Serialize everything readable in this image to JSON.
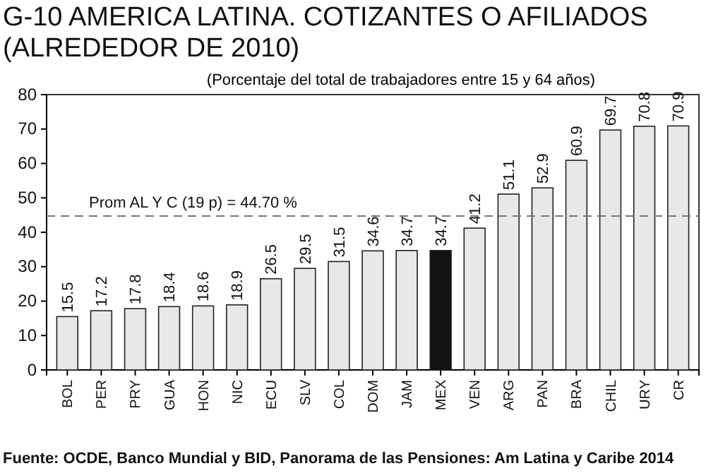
{
  "chart_data": {
    "type": "bar",
    "title": "G-10 AMERICA LATINA. COTIZANTES O AFILIADOS (ALREDEDOR DE 2010)",
    "subtitle": "(Porcentaje del total de trabajadores entre 15 y 64 años)",
    "categories": [
      "BOL",
      "PER",
      "PRY",
      "GUA",
      "HON",
      "NIC",
      "ECU",
      "SLV",
      "COL",
      "DOM",
      "JAM",
      "MEX",
      "VEN",
      "ARG",
      "PAN",
      "BRA",
      "CHIL",
      "URY",
      "CR"
    ],
    "values": [
      15.5,
      17.2,
      17.8,
      18.4,
      18.6,
      18.9,
      26.5,
      29.5,
      31.5,
      34.6,
      34.7,
      34.7,
      41.2,
      51.1,
      52.9,
      60.9,
      69.7,
      70.8,
      70.9
    ],
    "colors": [
      "#e8e8e8",
      "#e8e8e8",
      "#e8e8e8",
      "#e8e8e8",
      "#e8e8e8",
      "#e8e8e8",
      "#e8e8e8",
      "#e8e8e8",
      "#e8e8e8",
      "#e8e8e8",
      "#e8e8e8",
      "#111111",
      "#e8e8e8",
      "#e8e8e8",
      "#e8e8e8",
      "#e8e8e8",
      "#e8e8e8",
      "#e8e8e8",
      "#e8e8e8"
    ],
    "ylim": [
      0,
      80
    ],
    "yticks": [
      0,
      10,
      20,
      30,
      40,
      50,
      60,
      70,
      80
    ],
    "grid": false,
    "data_labels": true,
    "ref_lines": [
      {
        "axis": "y",
        "value": 44.7,
        "label": "Prom AL Y C (19 p) = 44.70 %",
        "color": "#777777",
        "line_style": "dashed"
      }
    ],
    "annotations": [
      "Fuente: OCDE, Banco Mundial y BID, Panorama de las Pensiones: Am Latina y Caribe 2014"
    ]
  }
}
